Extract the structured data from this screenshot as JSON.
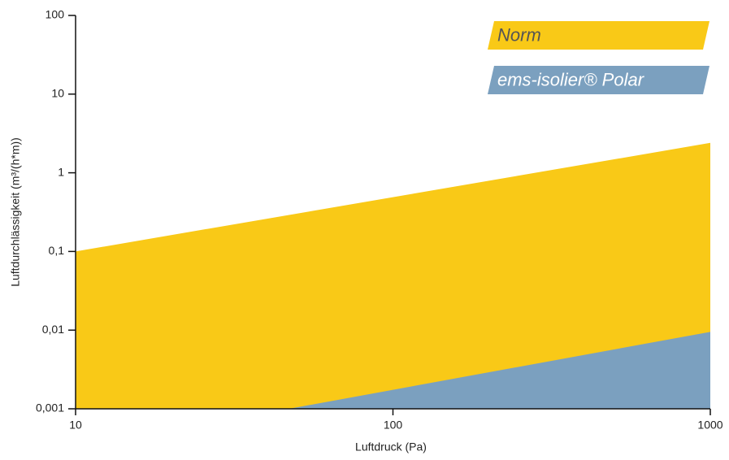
{
  "chart_data": {
    "type": "area",
    "xlabel": "Luftdruck (Pa)",
    "ylabel": "Luftdurchlässigkeit (m³/(h*m))",
    "xscale": "log",
    "yscale": "log",
    "xlim": [
      10,
      1000
    ],
    "ylim": [
      0.001,
      100
    ],
    "xticks": [
      10,
      100,
      1000
    ],
    "yticks": [
      {
        "value": 0.001,
        "label": "0,001"
      },
      {
        "value": 0.01,
        "label": "0,01"
      },
      {
        "value": 0.1,
        "label": "0,1"
      },
      1,
      10,
      100
    ],
    "legend": "upper right",
    "series": [
      {
        "name": "Norm",
        "color": "#f9c917",
        "text_color": "#555555",
        "x": [
          10,
          1000
        ],
        "values": [
          0.1,
          2.4
        ]
      },
      {
        "name": "ems-isolier® Polar",
        "color": "#7ba0bf",
        "text_color": "#ffffff",
        "x": [
          47,
          1000
        ],
        "values": [
          0.001,
          0.0095
        ]
      }
    ]
  }
}
